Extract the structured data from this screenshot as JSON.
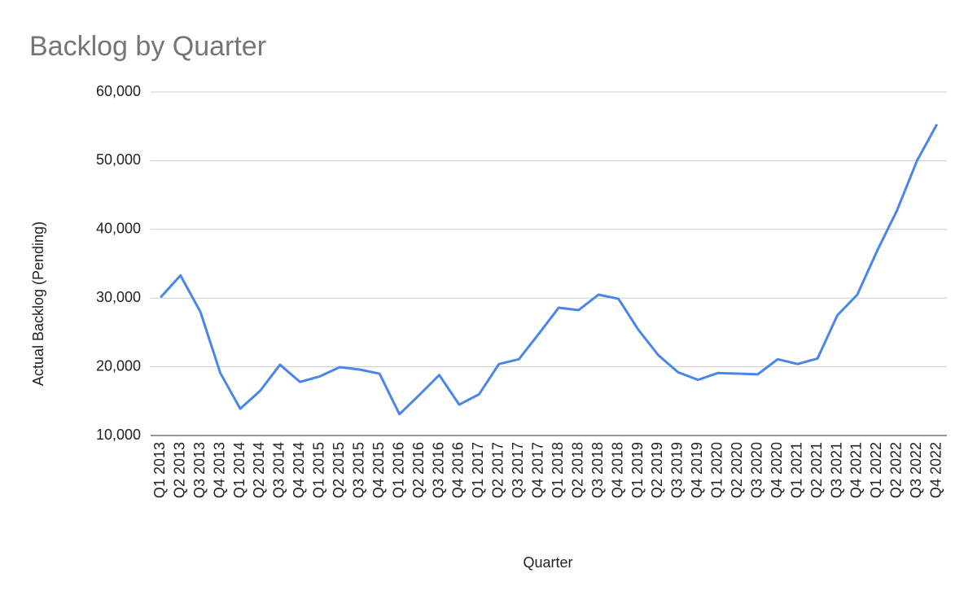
{
  "chart_data": {
    "type": "line",
    "title": "Backlog by Quarter",
    "x_label": "Quarter",
    "y_label": "Actual Backlog (Pending)",
    "categories": [
      "Q1 2013",
      "Q2 2013",
      "Q3 2013",
      "Q4 2013",
      "Q1 2014",
      "Q2 2014",
      "Q3 2014",
      "Q4 2014",
      "Q1 2015",
      "Q2 2015",
      "Q3 2015",
      "Q4 2015",
      "Q1 2016",
      "Q2 2016",
      "Q3 2016",
      "Q4 2016",
      "Q1 2017",
      "Q2 2017",
      "Q3 2017",
      "Q4 2017",
      "Q1 2018",
      "Q2 2018",
      "Q3 2018",
      "Q4 2018",
      "Q1 2019",
      "Q2 2019",
      "Q3 2019",
      "Q4 2019",
      "Q1 2020",
      "Q2 2020",
      "Q3 2020",
      "Q4 2020",
      "Q1 2021",
      "Q2 2021",
      "Q3 2021",
      "Q4 2021",
      "Q1 2022",
      "Q2 2022",
      "Q3 2022",
      "Q4 2022"
    ],
    "values": [
      30100,
      33300,
      28000,
      19100,
      13900,
      16500,
      20300,
      17800,
      18600,
      19950,
      19600,
      19000,
      13100,
      15900,
      18800,
      14500,
      16000,
      20400,
      21100,
      24800,
      28600,
      28250,
      30500,
      29900,
      25400,
      21700,
      19200,
      18100,
      19100,
      19000,
      18900,
      21100,
      20400,
      21200,
      27500,
      30500,
      36900,
      42800,
      50000,
      55300
    ],
    "color": "#4a86e8",
    "ylim": [
      10000,
      60000
    ],
    "yticks": [
      {
        "value": 10000,
        "label": "10,000"
      },
      {
        "value": 20000,
        "label": "20,000"
      },
      {
        "value": 30000,
        "label": "30,000"
      },
      {
        "value": 40000,
        "label": "40,000"
      },
      {
        "value": 50000,
        "label": "50,000"
      },
      {
        "value": 60000,
        "label": "60,000"
      }
    ],
    "grid": true
  }
}
